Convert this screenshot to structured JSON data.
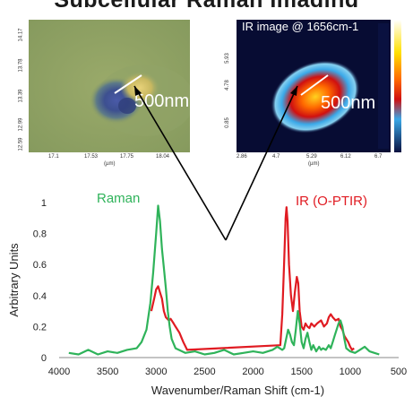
{
  "header": {
    "title_fragment": "Subcellular Raman Imaging"
  },
  "raman_image": {
    "scale_label": "500nm",
    "y_ticks": [
      "14.17",
      "13.78",
      "13.39",
      "12.99",
      "12.59"
    ],
    "x_ticks": [
      "17.1",
      "17.53",
      "17.75",
      "18.04"
    ],
    "x_unit": "(µm)"
  },
  "ir_image": {
    "title": "IR image @ 1656cm-1",
    "scale_label": "500nm",
    "y_ticks": [
      "5.93",
      "4.78",
      "0.85"
    ],
    "x_ticks": [
      "2.86",
      "4.7",
      "5.29",
      "6.12",
      "6.7"
    ],
    "x_unit": "(µm)"
  },
  "chart_data": {
    "type": "line",
    "title": "",
    "xlabel": "Wavenumber/Raman Shift (cm-1)",
    "ylabel": "Arbitrary Units",
    "xlim": [
      4000,
      500
    ],
    "ylim": [
      0,
      1
    ],
    "x_ticks": [
      4000,
      3500,
      3000,
      2500,
      2000,
      1500,
      1000,
      500
    ],
    "y_ticks": [
      0,
      0.2,
      0.4,
      0.6,
      0.8,
      1
    ],
    "legend": [
      "Raman",
      "IR (O-PTIR)"
    ],
    "series": [
      {
        "name": "Raman",
        "color": "#2fb35a",
        "x": [
          3900,
          3800,
          3700,
          3600,
          3500,
          3400,
          3300,
          3200,
          3150,
          3100,
          3060,
          3030,
          3000,
          2980,
          2960,
          2940,
          2920,
          2900,
          2880,
          2860,
          2840,
          2800,
          2700,
          2600,
          2500,
          2400,
          2300,
          2200,
          2100,
          2000,
          1900,
          1800,
          1750,
          1700,
          1680,
          1660,
          1640,
          1620,
          1600,
          1580,
          1560,
          1540,
          1520,
          1500,
          1480,
          1460,
          1440,
          1420,
          1400,
          1380,
          1350,
          1320,
          1300,
          1280,
          1250,
          1220,
          1200,
          1180,
          1160,
          1140,
          1120,
          1100,
          1080,
          1060,
          1040,
          1000,
          950,
          900,
          850,
          800,
          750,
          700
        ],
        "y": [
          0.03,
          0.02,
          0.05,
          0.02,
          0.04,
          0.03,
          0.05,
          0.06,
          0.1,
          0.18,
          0.35,
          0.55,
          0.8,
          0.98,
          0.88,
          0.7,
          0.58,
          0.45,
          0.3,
          0.2,
          0.12,
          0.06,
          0.03,
          0.04,
          0.02,
          0.03,
          0.05,
          0.02,
          0.03,
          0.04,
          0.03,
          0.05,
          0.07,
          0.05,
          0.06,
          0.12,
          0.18,
          0.15,
          0.1,
          0.08,
          0.18,
          0.3,
          0.22,
          0.1,
          0.06,
          0.12,
          0.16,
          0.1,
          0.05,
          0.08,
          0.04,
          0.07,
          0.05,
          0.06,
          0.05,
          0.08,
          0.06,
          0.1,
          0.14,
          0.18,
          0.22,
          0.24,
          0.2,
          0.12,
          0.06,
          0.04,
          0.03,
          0.05,
          0.07,
          0.04,
          0.03,
          0.02
        ]
      },
      {
        "name": "IR (O-PTIR)",
        "color": "#e01b22",
        "x": [
          3050,
          3020,
          3000,
          2980,
          2960,
          2940,
          2920,
          2900,
          2870,
          2850,
          2820,
          2800,
          2760,
          2720,
          2680,
          1720,
          1700,
          1680,
          1665,
          1656,
          1645,
          1630,
          1610,
          1590,
          1570,
          1550,
          1535,
          1520,
          1500,
          1480,
          1460,
          1440,
          1420,
          1400,
          1370,
          1340,
          1300,
          1270,
          1240,
          1220,
          1200,
          1180,
          1150,
          1120,
          1100,
          1080,
          1060,
          1040,
          1020,
          1000,
          980,
          960
        ],
        "y": [
          0.3,
          0.38,
          0.44,
          0.46,
          0.42,
          0.38,
          0.3,
          0.26,
          0.24,
          0.25,
          0.22,
          0.2,
          0.16,
          0.1,
          0.05,
          0.08,
          0.28,
          0.62,
          0.9,
          0.97,
          0.88,
          0.6,
          0.4,
          0.3,
          0.42,
          0.52,
          0.48,
          0.3,
          0.2,
          0.18,
          0.22,
          0.2,
          0.19,
          0.22,
          0.2,
          0.22,
          0.24,
          0.2,
          0.22,
          0.26,
          0.28,
          0.26,
          0.24,
          0.25,
          0.2,
          0.18,
          0.14,
          0.12,
          0.1,
          0.07,
          0.05,
          0.06
        ]
      }
    ]
  }
}
